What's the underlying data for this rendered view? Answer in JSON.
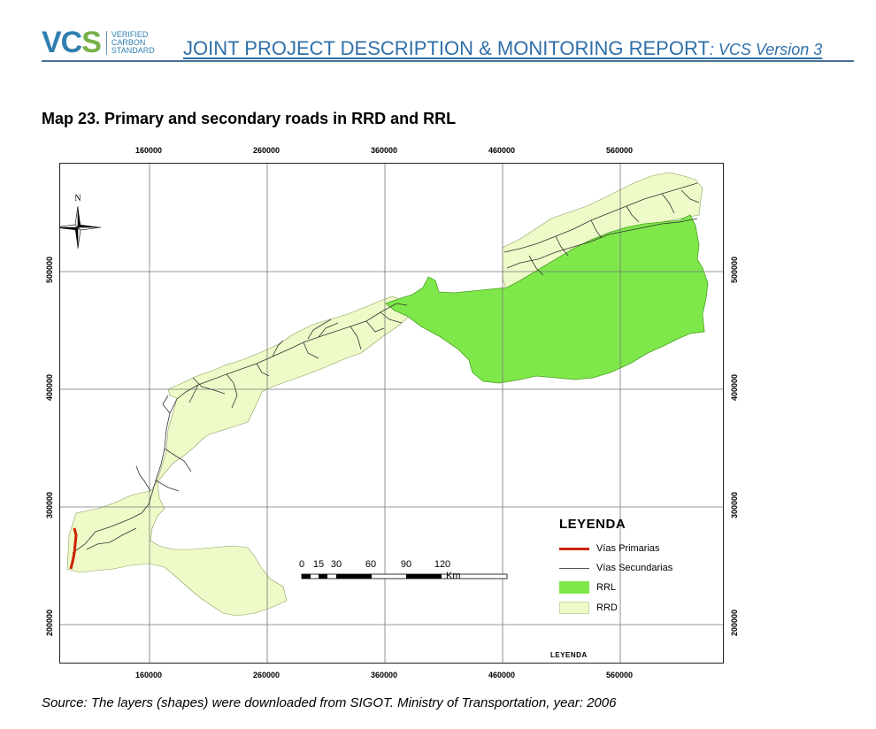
{
  "header": {
    "logo_text": "VCS",
    "logo_sub": [
      "VERIFIED",
      "CARBON",
      "STANDARD"
    ],
    "title": "JOINT PROJECT DESCRIPTION & MONITORING REPORT",
    "version": ": VCS Version 3"
  },
  "caption": "Map 23.  Primary and secondary roads in RRD and RRL",
  "map": {
    "north_label": "N",
    "x_ticks": [
      "160000",
      "260000",
      "360000",
      "460000",
      "560000"
    ],
    "y_ticks": [
      "500000",
      "400000",
      "300000",
      "200000"
    ],
    "colors": {
      "rrl": "#7ee84a",
      "rrd": "#eefac8",
      "primary": "#cc2200",
      "secondary": "#333333",
      "grid": "#777777"
    },
    "scale_bar": {
      "labels": [
        "0",
        "15",
        "30",
        "60",
        "90",
        "120"
      ],
      "unit": "Km"
    },
    "legend": {
      "title": "LEYENDA",
      "items": [
        {
          "label": "Vías Primarias",
          "kind": "line",
          "color": "#cc2200"
        },
        {
          "label": "Vías Secundarias",
          "kind": "thin-line",
          "color": "#555555"
        },
        {
          "label": "RRL",
          "kind": "fill",
          "color": "#7ee84a"
        },
        {
          "label": "RRD",
          "kind": "fill",
          "color": "#eefac8"
        }
      ],
      "footer": "LEYENDA"
    }
  },
  "source": "Source: The layers (shapes) were downloaded from SIGOT. Ministry of Transportation, year: 2006"
}
